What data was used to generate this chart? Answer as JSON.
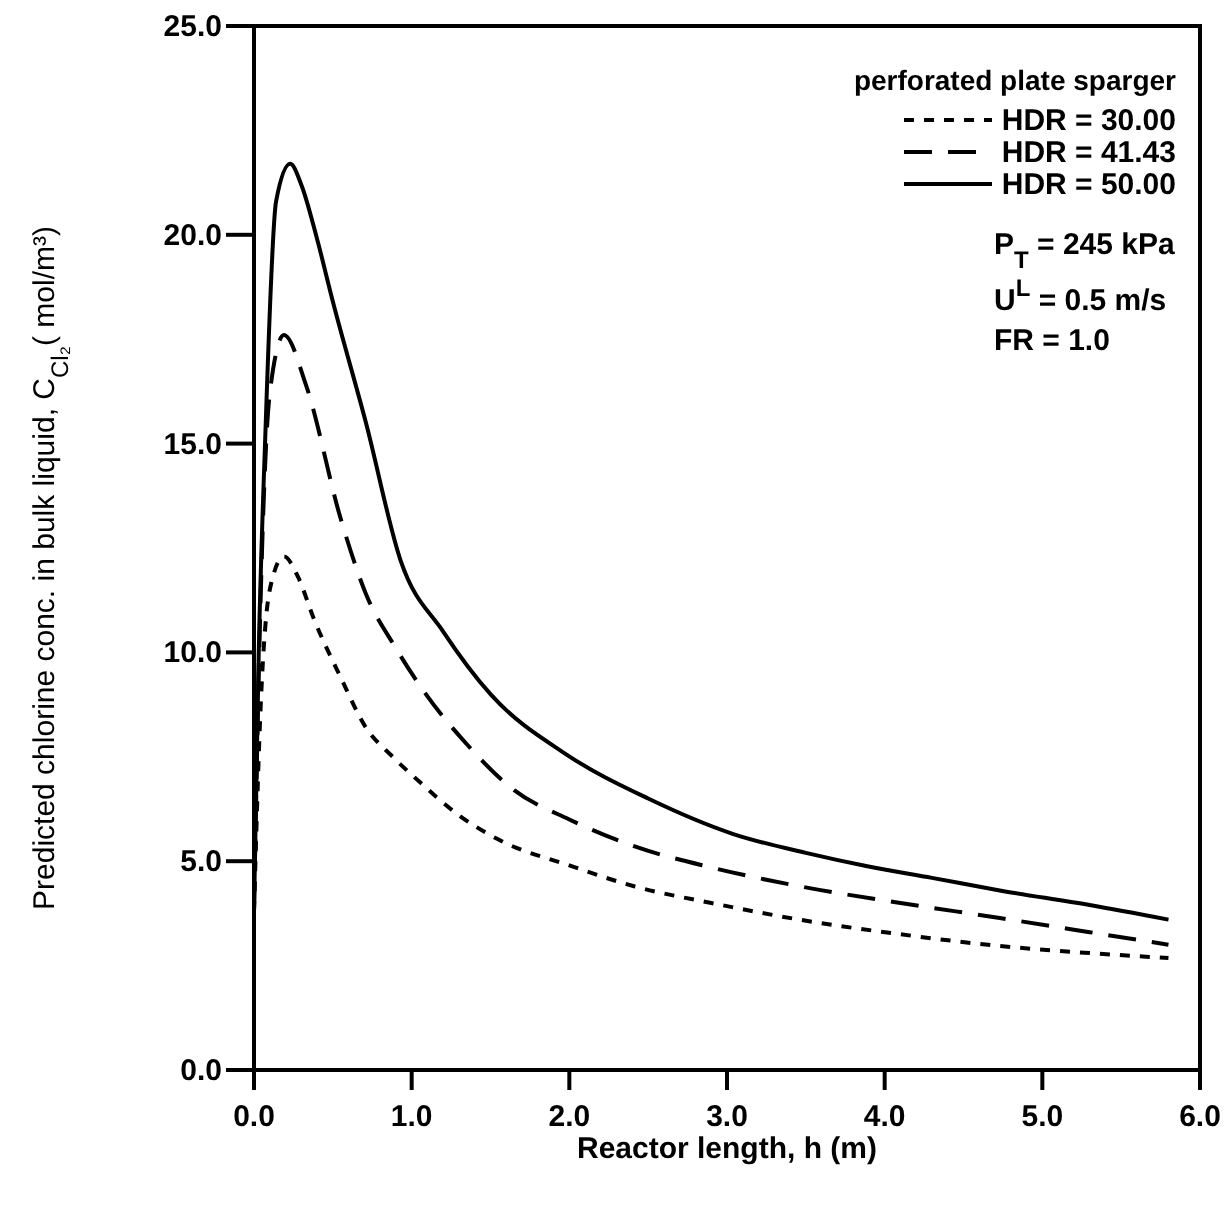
{
  "chart_data": {
    "type": "line",
    "xlabel": "Reactor length, h (m)",
    "ylabel": "Predicted chlorine conc. in bulk liquid,  C$_{Cl₂}$( mol/m³)",
    "legend_title": "perforated plate sparger",
    "legend": "top right",
    "grid": false,
    "xlim": [
      0,
      6
    ],
    "ylim": [
      0,
      25
    ],
    "xticks": [
      {
        "value": 0,
        "label": "0.0"
      },
      {
        "value": 1,
        "label": "1.0"
      },
      {
        "value": 2,
        "label": "2.0"
      },
      {
        "value": 3,
        "label": "3.0"
      },
      {
        "value": 4,
        "label": "4.0"
      },
      {
        "value": 5,
        "label": "5.0"
      },
      {
        "value": 6,
        "label": "6.0"
      }
    ],
    "yticks": [
      {
        "value": 0,
        "label": "0.0"
      },
      {
        "value": 5,
        "label": "5.0"
      },
      {
        "value": 10,
        "label": "10.0"
      },
      {
        "value": 15,
        "label": "15.0"
      },
      {
        "value": 20,
        "label": "20.0"
      },
      {
        "value": 25,
        "label": "25.0"
      }
    ],
    "annotations": [
      "P$_{T}$ = 245 kPa",
      "U$^{L}$ = 0.5 m/s",
      "FR = 1.0"
    ],
    "series": [
      {
        "name": "HDR = 30.00",
        "color": "#000000",
        "line_style": "dotted",
        "x": [
          0,
          0.04,
          0.1,
          0.19,
          0.28,
          0.38,
          0.55,
          0.71,
          0.88,
          1.05,
          1.3,
          1.56,
          2.0,
          2.41,
          2.9,
          3.46,
          4.1,
          4.73,
          5.3,
          5.8
        ],
        "values": [
          3.8,
          8.5,
          11.5,
          12.3,
          11.8,
          10.8,
          9.4,
          8.2,
          7.5,
          6.9,
          6.1,
          5.5,
          4.9,
          4.4,
          4.0,
          3.6,
          3.25,
          2.97,
          2.8,
          2.68
        ]
      },
      {
        "name": "HDR = 41.43",
        "color": "#000000",
        "line_style": "dashed",
        "x": [
          0,
          0.04,
          0.1,
          0.19,
          0.33,
          0.55,
          0.71,
          0.9,
          1.09,
          1.35,
          1.65,
          2.0,
          2.41,
          2.9,
          3.46,
          4.1,
          4.73,
          5.3,
          5.8
        ],
        "values": [
          3.8,
          11,
          16.2,
          17.6,
          16.4,
          13.2,
          11.4,
          10.1,
          9.0,
          7.8,
          6.7,
          6.0,
          5.36,
          4.85,
          4.4,
          4.0,
          3.64,
          3.3,
          3.0
        ]
      },
      {
        "name": "HDR = 50.00",
        "color": "#000000",
        "line_style": "solid",
        "x": [
          0,
          0.03,
          0.07,
          0.14,
          0.23,
          0.3,
          0.4,
          0.5,
          0.71,
          0.93,
          1.2,
          1.5,
          1.98,
          2.5,
          3.04,
          3.5,
          3.89,
          4.3,
          4.73,
          5.3,
          5.8
        ],
        "values": [
          3.8,
          10,
          15,
          20.8,
          21.7,
          21.2,
          19.9,
          18.4,
          15.5,
          12.2,
          10.5,
          9.0,
          7.56,
          6.5,
          5.65,
          5.2,
          4.88,
          4.6,
          4.3,
          3.95,
          3.6
        ]
      }
    ]
  }
}
